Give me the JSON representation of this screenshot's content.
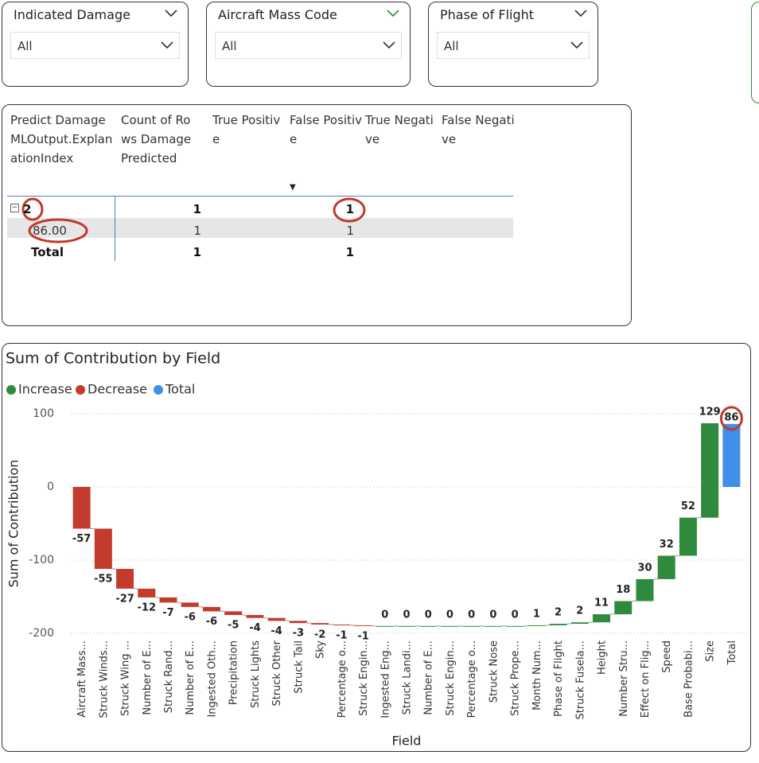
{
  "slicers": [
    {
      "title": "Indicated Damage",
      "value": "All"
    },
    {
      "title": "Aircraft Mass Code",
      "value": "All"
    },
    {
      "title": "Phase of Flight",
      "value": "All"
    }
  ],
  "table": {
    "headers": [
      "Predict Damage MLOutput.ExplanationIndex",
      "Count of Rows Damage Predicted",
      "True Positive",
      "False Positive",
      "True Negative",
      "False Negative"
    ],
    "rows": [
      [
        "2",
        1,
        null,
        1,
        null,
        null
      ],
      [
        "86.00",
        1,
        null,
        1,
        null,
        null
      ],
      [
        "Total",
        1,
        null,
        1,
        null,
        null
      ]
    ]
  },
  "chart_data": {
    "type": "waterfall",
    "title": "Sum of Contribution by Field",
    "x_label": "Field",
    "y_label": "Sum of Contribution",
    "legend": [
      {
        "name": "Increase",
        "color": "#2f8a3e"
      },
      {
        "name": "Decrease",
        "color": "#c33b2d"
      },
      {
        "name": "Total",
        "color": "#3f8ee8"
      }
    ],
    "categories": [
      "Aircraft Mass...",
      "Struck Winds...",
      "Struck Wing ...",
      "Number of E...",
      "Struck Rand...",
      "Number of E...",
      "Ingested Oth...",
      "Precipitation",
      "Struck Lights",
      "Struck Other",
      "Struck Tail",
      "Sky",
      "Percentage o...",
      "Struck Engin...",
      "Ingested Eng...",
      "Struck Landi...",
      "Number of E...",
      "Struck Engin...",
      "Percentage o...",
      "Struck Nose",
      "Struck Prope...",
      "Month Num...",
      "Phase of Flight",
      "Struck Fusela...",
      "Height",
      "Number Stru...",
      "Effect on Flig...",
      "Speed",
      "Base Probabi...",
      "Size"
    ],
    "values": [
      -57,
      -55,
      -27,
      -12,
      -7,
      -6,
      -6,
      -5,
      -4,
      -4,
      -3,
      -2,
      -1,
      -1,
      0,
      0,
      0,
      0,
      0,
      0,
      0,
      1,
      2,
      2,
      11,
      18,
      30,
      32,
      52,
      129
    ],
    "total": {
      "category": "Total",
      "value": 86
    },
    "ylim": [
      -200,
      100
    ],
    "yticks": [
      -200,
      -100,
      0,
      100
    ],
    "grid": true
  }
}
